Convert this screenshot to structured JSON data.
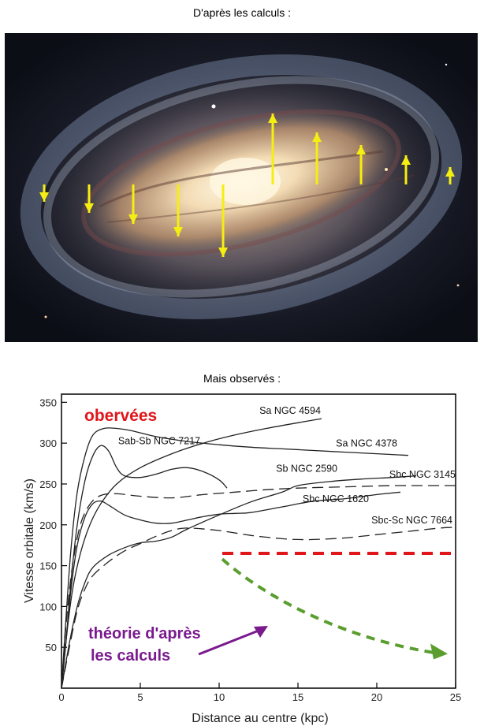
{
  "captions": {
    "top": "D'après les calculs :",
    "bottom": "Mais observés :"
  },
  "galaxy": {
    "arrow_color": "#f5ee12",
    "arrow_directions": [
      "down",
      "down",
      "down",
      "down",
      "down",
      "up",
      "up",
      "up",
      "up",
      "up"
    ]
  },
  "chart_data": {
    "type": "line",
    "xlabel": "Distance au centre (kpc)",
    "ylabel": "Vitesse orbitale (km/s)",
    "xlim": [
      0,
      25
    ],
    "ylim": [
      0,
      360
    ],
    "x_ticks": [
      0,
      5,
      10,
      15,
      20,
      25
    ],
    "y_ticks": [
      50,
      100,
      150,
      200,
      250,
      300,
      350
    ],
    "grid": false,
    "annotations": {
      "observed": "obervées",
      "observed_color": "#e0161b",
      "theory_line1": "théorie d'après",
      "theory_line2": "les calculs",
      "theory_color": "#7a1a8e",
      "theory_arrow_color": "#7a1a8e",
      "flat_line_color": "#e0161b",
      "decline_color": "#5a9e2f"
    },
    "series": [
      {
        "name": "Sa NGC 4594",
        "dash": false,
        "x": [
          0,
          0.3,
          0.7,
          1.2,
          1.8,
          2.5,
          3.5,
          5,
          7,
          9,
          11,
          13,
          15,
          16.5
        ],
        "y": [
          0,
          60,
          120,
          165,
          200,
          226,
          250,
          270,
          287,
          300,
          310,
          318,
          325,
          330
        ]
      },
      {
        "name": "Sa NGC 4378",
        "dash": false,
        "x": [
          0,
          0.3,
          0.6,
          1,
          1.5,
          2,
          2.7,
          3.5,
          4.5,
          6,
          8,
          10,
          12,
          14,
          16,
          18,
          20,
          22
        ],
        "y": [
          0,
          90,
          170,
          240,
          285,
          310,
          318,
          318,
          315,
          308,
          302,
          298,
          295,
          293,
          291,
          289,
          287,
          285
        ]
      },
      {
        "name": "Sab-Sb NGC 7217",
        "dash": false,
        "x": [
          0,
          0.3,
          0.6,
          1,
          1.5,
          2,
          2.5,
          3,
          3.5,
          4,
          5,
          6,
          7,
          8,
          9,
          10,
          10.5
        ],
        "y": [
          0,
          60,
          130,
          200,
          255,
          285,
          297,
          290,
          270,
          260,
          258,
          262,
          268,
          270,
          265,
          255,
          245
        ]
      },
      {
        "name": "Sb NGC 2590",
        "dash": false,
        "x": [
          0,
          0.5,
          1,
          1.5,
          2,
          3,
          4,
          5,
          6,
          7,
          8,
          10,
          12,
          14,
          15,
          17,
          19,
          21,
          22.5
        ],
        "y": [
          0,
          55,
          100,
          130,
          148,
          163,
          172,
          178,
          180,
          185,
          195,
          212,
          228,
          240,
          248,
          253,
          256,
          258,
          260
        ]
      },
      {
        "name": "Sbc NGC 3145",
        "dash": true,
        "x": [
          0,
          0.3,
          0.7,
          1.2,
          1.8,
          2.5,
          3.5,
          5,
          7,
          9,
          11,
          13,
          15,
          17,
          19,
          21,
          23,
          25
        ],
        "y": [
          0,
          80,
          150,
          200,
          225,
          236,
          238,
          235,
          233,
          237,
          240,
          243,
          245,
          246,
          247,
          248,
          248,
          248
        ]
      },
      {
        "name": "Sbc NGC 1620",
        "dash": false,
        "x": [
          0,
          0.3,
          0.6,
          1,
          1.5,
          2,
          2.5,
          3,
          4,
          5,
          6,
          7,
          8,
          9,
          10,
          11,
          12,
          14,
          16,
          18,
          20,
          21.5
        ],
        "y": [
          0,
          60,
          120,
          175,
          210,
          226,
          229,
          224,
          212,
          206,
          202,
          202,
          206,
          210,
          213,
          214,
          215,
          222,
          229,
          232,
          237,
          240
        ]
      },
      {
        "name": "Sbc-Sc NGC 7664",
        "dash": true,
        "x": [
          0,
          0.5,
          1,
          1.5,
          2,
          3,
          4,
          5,
          6,
          7,
          8,
          10,
          12,
          14,
          15,
          16,
          18,
          20,
          22,
          24,
          25
        ],
        "y": [
          0,
          50,
          95,
          122,
          138,
          155,
          168,
          177,
          186,
          193,
          196,
          193,
          187,
          183,
          182,
          182,
          184,
          188,
          192,
          196,
          197
        ]
      }
    ]
  }
}
